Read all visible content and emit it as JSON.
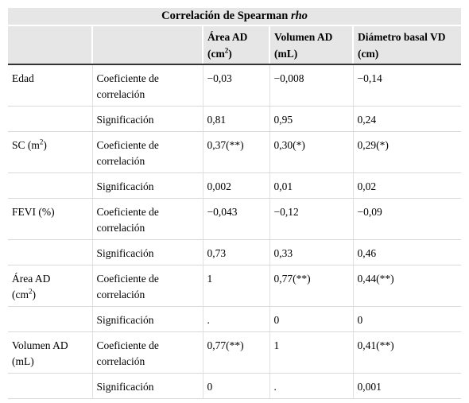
{
  "table": {
    "title": "Correlación de Spearman",
    "title_italic": "rho",
    "headers": {
      "col3_line1": "Área AD",
      "col3_line2_pre": "(cm",
      "col3_line2_sup": "2",
      "col3_line2_post": ")",
      "col4_line1": "Volumen AD",
      "col4_line2": "(mL)",
      "col5_line1": "Diámetro basal VD",
      "col5_line2": "(cm)"
    },
    "rows": [
      {
        "var_line1": "Edad",
        "coef_label_1": "Coeficiente de",
        "coef_label_2": "correlación",
        "coef": [
          "−0,03",
          "−0,008",
          "−0,14"
        ],
        "sig_label": "Significación",
        "sig": [
          "0,81",
          "0,95",
          "0,24"
        ]
      },
      {
        "var_pre": "SC (m",
        "var_sup": "2",
        "var_post": ")",
        "coef_label_1": "Coeficiente de",
        "coef_label_2": "correlación",
        "coef": [
          "0,37(**)",
          "0,30(*)",
          "0,29(*)"
        ],
        "sig_label": "Significación",
        "sig": [
          "0,002",
          "0,01",
          "0,02"
        ]
      },
      {
        "var_line1": "FEVI (%)",
        "coef_label_1": "Coeficiente de",
        "coef_label_2": "correlación",
        "coef": [
          "−0,043",
          "−0,12",
          "−0,09"
        ],
        "sig_label": "Significación",
        "sig": [
          "0,73",
          "0,33",
          "0,46"
        ]
      },
      {
        "var_line1": "Área AD",
        "var_pre": "(cm",
        "var_sup": "2",
        "var_post": ")",
        "coef_label_1": "Coeficiente de",
        "coef_label_2": "correlación",
        "coef": [
          "1",
          "0,77(**)",
          "0,44(**)"
        ],
        "sig_label": "Significación",
        "sig": [
          ".",
          "0",
          "0"
        ]
      },
      {
        "var_line1": "Volumen AD",
        "var_line2": "(mL)",
        "coef_label_1": "Coeficiente de",
        "coef_label_2": "correlación",
        "coef": [
          "0,77(**)",
          "1",
          "0,41(**)"
        ],
        "sig_label": "Significación",
        "sig": [
          "0",
          ".",
          "0,001"
        ]
      }
    ]
  }
}
